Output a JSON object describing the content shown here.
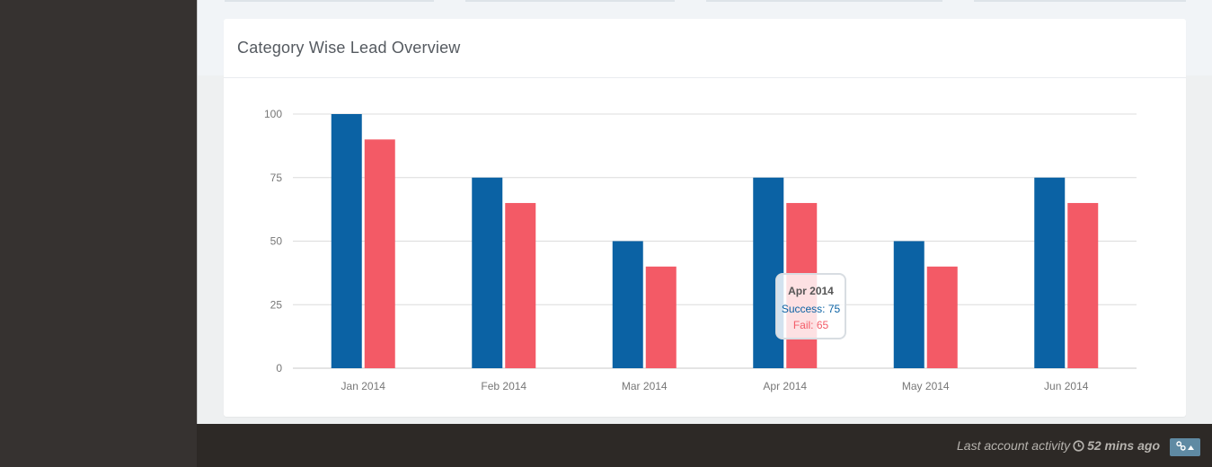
{
  "panel": {
    "title": "Category Wise Lead Overview"
  },
  "chart_data": {
    "type": "bar",
    "categories": [
      "Jan 2014",
      "Feb 2014",
      "Mar 2014",
      "Apr 2014",
      "May 2014",
      "Jun 2014"
    ],
    "series": [
      {
        "name": "Success",
        "values": [
          100,
          75,
          50,
          75,
          50,
          75
        ],
        "color": "#0b62a4"
      },
      {
        "name": "Fail",
        "values": [
          90,
          65,
          40,
          65,
          40,
          65
        ],
        "color": "#f35a66"
      }
    ],
    "ylim": [
      0,
      100
    ],
    "yticks": [
      "0",
      "25",
      "50",
      "75",
      "100"
    ],
    "grid": true,
    "title": "",
    "xlabel": "",
    "ylabel": ""
  },
  "tooltip": {
    "title": "Apr 2014",
    "success": "Success: 75",
    "fail": "Fail: 65"
  },
  "footer": {
    "activity_label": "Last account activity",
    "activity_time": "52 mins ago",
    "icons": [
      "clock-icon",
      "link-icon",
      "caret-up-icon"
    ]
  }
}
